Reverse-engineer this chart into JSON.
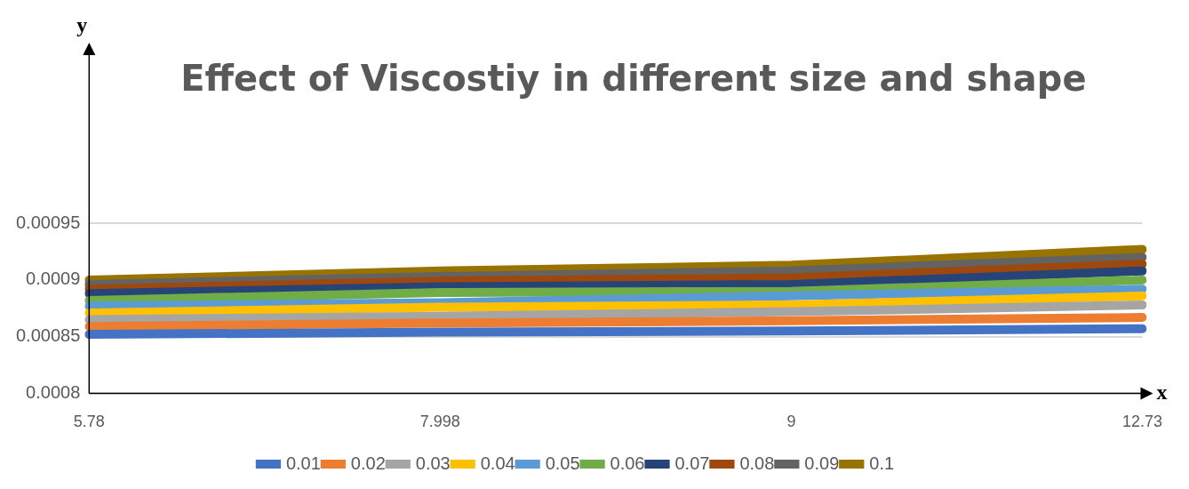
{
  "chart_data": {
    "type": "line",
    "title": "Effect of Viscostiy in different size and shape",
    "xlabel": "x",
    "ylabel": "y",
    "categories": [
      "5.78",
      "7.998",
      "9",
      "12.73"
    ],
    "series": [
      {
        "name": "0.01",
        "color": "#4472c4",
        "values": [
          0.000852,
          0.000854,
          0.000855,
          0.000857
        ]
      },
      {
        "name": "0.02",
        "color": "#ed7d31",
        "values": [
          0.000859,
          0.000862,
          0.000864,
          0.000867
        ]
      },
      {
        "name": "0.03",
        "color": "#a5a5a5",
        "values": [
          0.000865,
          0.000868,
          0.000872,
          0.000878
        ]
      },
      {
        "name": "0.04",
        "color": "#ffc000",
        "values": [
          0.000871,
          0.000876,
          0.000878,
          0.000886
        ]
      },
      {
        "name": "0.05",
        "color": "#5b9bd5",
        "values": [
          0.000877,
          0.00088,
          0.000886,
          0.000892
        ]
      },
      {
        "name": "0.06",
        "color": "#70ad47",
        "values": [
          0.000882,
          0.000889,
          0.00089,
          0.0009
        ]
      },
      {
        "name": "0.07",
        "color": "#264478",
        "values": [
          0.000888,
          0.000894,
          0.000896,
          0.000908
        ]
      },
      {
        "name": "0.08",
        "color": "#9e480e",
        "values": [
          0.000892,
          0.000899,
          0.000902,
          0.000914
        ]
      },
      {
        "name": "0.09",
        "color": "#636363",
        "values": [
          0.000896,
          0.000903,
          0.000908,
          0.00092
        ]
      },
      {
        "name": "0.1",
        "color": "#997300",
        "values": [
          0.0009,
          0.000908,
          0.000913,
          0.000927
        ]
      }
    ],
    "ylim": [
      0.0008,
      0.0011
    ],
    "yticks": [
      0.0008,
      0.00085,
      0.0009,
      0.00095
    ],
    "grid": "y",
    "legend": "bottom",
    "marker": "none",
    "line_style": "solid"
  }
}
